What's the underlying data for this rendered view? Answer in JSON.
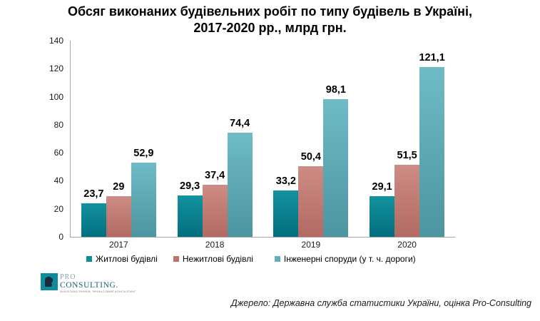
{
  "title": {
    "line1": "Обсяг виконаних будівельних робіт по типу будівель в Україні,",
    "line2": "2017-2020 рр., млрд грн."
  },
  "chart_data": {
    "type": "bar",
    "title": "Обсяг виконаних будівельних робіт по типу будівель в Україні, 2017-2020 рр., млрд грн.",
    "categories": [
      "2017",
      "2018",
      "2019",
      "2020"
    ],
    "series": [
      {
        "name": "Житлові будівлі",
        "values": [
          23.7,
          29.3,
          33.2,
          29.1
        ],
        "display_labels": [
          "23,7",
          "29,3",
          "33,2",
          "29,1"
        ],
        "color_top": "#13929f",
        "color_bottom": "#026e7e",
        "legend_color": "#0e8c9c"
      },
      {
        "name": "Нежитлові будівлі",
        "values": [
          29,
          37.4,
          50.4,
          51.5
        ],
        "display_labels": [
          "29",
          "37,4",
          "50,4",
          "51,5"
        ],
        "color_top": "#cd8c84",
        "color_bottom": "#b26a61",
        "legend_color": "#bd7368"
      },
      {
        "name": "Інженерні споруди (у т. ч. дороги)",
        "values": [
          52.9,
          74.4,
          98.1,
          121.1
        ],
        "display_labels": [
          "52,9",
          "74,4",
          "98,1",
          "121,1"
        ],
        "color_top": "#6ebbc6",
        "color_bottom": "#4d95a0",
        "legend_color": "#61adb9"
      }
    ],
    "y_axis": {
      "min": 0,
      "max": 140,
      "step": 20,
      "ticks": [
        "0",
        "20",
        "40",
        "60",
        "80",
        "100",
        "120",
        "140"
      ]
    },
    "grid": false,
    "legend_position": "bottom",
    "xlabel": "",
    "ylabel": ""
  },
  "logo": {
    "name_line1": "PRO",
    "name_line2": "CONSULTING.",
    "tagline": "АНАЛІТИКА РИНКІВ, ФІНАНСОВИЙ КОНСАЛТИНГ",
    "icon_color": "#0e8c9c"
  },
  "source": {
    "text": "Джерело: Державна служба статистики України, оцінка Pro-Consulting"
  }
}
